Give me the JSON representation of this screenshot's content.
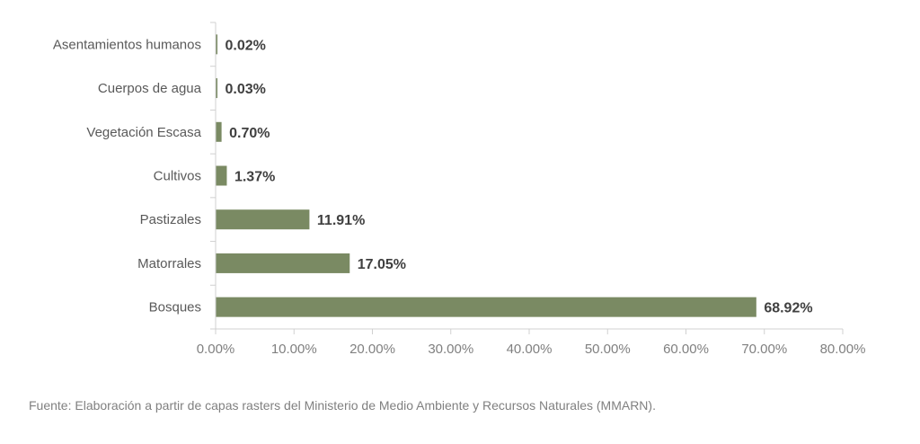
{
  "chart_data": {
    "type": "bar",
    "orientation": "horizontal",
    "categories": [
      "Asentamientos humanos",
      "Cuerpos de agua",
      "Vegetación Escasa",
      "Cultivos",
      "Pastizales",
      "Matorrales",
      "Bosques"
    ],
    "values": [
      0.02,
      0.03,
      0.7,
      1.37,
      11.91,
      17.05,
      68.92
    ],
    "data_labels": [
      "0.02%",
      "0.03%",
      "0.70%",
      "1.37%",
      "11.91%",
      "17.05%",
      "68.92%"
    ],
    "xlim": [
      0,
      80
    ],
    "xticks": [
      "0.00%",
      "10.00%",
      "20.00%",
      "30.00%",
      "40.00%",
      "50.00%",
      "60.00%",
      "70.00%",
      "80.00%"
    ],
    "bar_color": "#7a8a63",
    "grid": false,
    "legend": "none"
  },
  "source_note": "Fuente: Elaboración a partir de capas rasters del Ministerio de Medio Ambiente y Recursos Naturales (MMARN)."
}
